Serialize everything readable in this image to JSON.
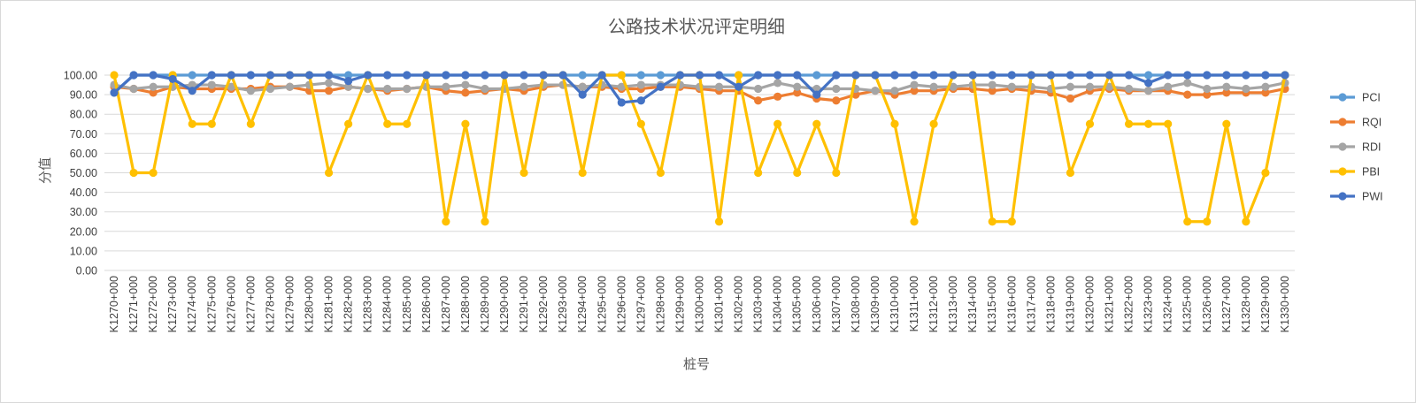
{
  "chart_data": {
    "type": "line",
    "title": "公路技术状况评定明细",
    "xlabel": "桩号",
    "ylabel": "分值",
    "ylim": [
      0,
      100
    ],
    "yticks": [
      "0.00",
      "10.00",
      "20.00",
      "30.00",
      "40.00",
      "50.00",
      "60.00",
      "70.00",
      "80.00",
      "90.00",
      "100.00"
    ],
    "grid": true,
    "legend_position": "right",
    "categories": [
      "K1270+000",
      "K1271+000",
      "K1272+000",
      "K1273+000",
      "K1274+000",
      "K1275+000",
      "K1276+000",
      "K1277+000",
      "K1278+000",
      "K1279+000",
      "K1280+000",
      "K1281+000",
      "K1282+000",
      "K1283+000",
      "K1284+000",
      "K1285+000",
      "K1286+000",
      "K1287+000",
      "K1288+000",
      "K1289+000",
      "K1290+000",
      "K1291+000",
      "K1292+000",
      "K1293+000",
      "K1294+000",
      "K1295+000",
      "K1296+000",
      "K1297+000",
      "K1298+000",
      "K1299+000",
      "K1300+000",
      "K1301+000",
      "K1302+000",
      "K1303+000",
      "K1304+000",
      "K1305+000",
      "K1306+000",
      "K1307+000",
      "K1308+000",
      "K1309+000",
      "K1310+000",
      "K1311+000",
      "K1312+000",
      "K1313+000",
      "K1314+000",
      "K1315+000",
      "K1316+000",
      "K1317+000",
      "K1318+000",
      "K1319+000",
      "K1320+000",
      "K1321+000",
      "K1322+000",
      "K1323+000",
      "K1324+000",
      "K1325+000",
      "K1326+000",
      "K1327+000",
      "K1328+000",
      "K1329+000",
      "K1330+000"
    ],
    "series": [
      {
        "name": "PCI",
        "color": "#5b9bd5",
        "values": [
          91,
          100,
          100,
          100,
          100,
          100,
          100,
          100,
          100,
          100,
          100,
          100,
          100,
          100,
          100,
          100,
          100,
          100,
          100,
          100,
          100,
          100,
          100,
          100,
          100,
          100,
          100,
          100,
          100,
          100,
          100,
          100,
          100,
          100,
          100,
          100,
          100,
          100,
          100,
          100,
          100,
          100,
          100,
          100,
          100,
          100,
          100,
          100,
          100,
          100,
          100,
          100,
          100,
          100,
          100,
          100,
          100,
          100,
          100,
          100,
          100
        ]
      },
      {
        "name": "RQI",
        "color": "#ed7d31",
        "values": [
          94,
          93,
          91,
          94,
          93,
          93,
          93,
          93,
          94,
          94,
          92,
          92,
          94,
          93,
          92,
          93,
          94,
          92,
          91,
          92,
          93,
          92,
          94,
          95,
          94,
          94,
          93,
          93,
          94,
          94,
          93,
          92,
          92,
          87,
          89,
          91,
          88,
          87,
          90,
          92,
          90,
          92,
          92,
          93,
          93,
          92,
          93,
          92,
          91,
          88,
          92,
          93,
          92,
          92,
          92,
          90,
          90,
          91,
          91,
          91,
          93
        ]
      },
      {
        "name": "RDI",
        "color": "#a5a5a5",
        "values": [
          95,
          93,
          94,
          94,
          95,
          95,
          94,
          92,
          93,
          94,
          95,
          96,
          94,
          93,
          93,
          93,
          94,
          94,
          95,
          93,
          93,
          94,
          95,
          95,
          94,
          95,
          94,
          95,
          95,
          95,
          94,
          94,
          94,
          93,
          96,
          94,
          93,
          93,
          93,
          92,
          92,
          95,
          94,
          94,
          95,
          95,
          94,
          94,
          93,
          94,
          94,
          94,
          93,
          92,
          94,
          96,
          93,
          94,
          93,
          94,
          96
        ]
      },
      {
        "name": "PBI",
        "color": "#ffc000",
        "values": [
          100,
          50,
          50,
          100,
          75,
          75,
          100,
          75,
          100,
          100,
          100,
          50,
          75,
          100,
          75,
          75,
          100,
          25,
          75,
          25,
          100,
          50,
          100,
          100,
          50,
          100,
          100,
          75,
          50,
          100,
          100,
          25,
          100,
          50,
          75,
          50,
          75,
          50,
          100,
          100,
          75,
          25,
          75,
          100,
          100,
          25,
          25,
          100,
          100,
          50,
          75,
          100,
          75,
          75,
          75,
          25,
          25,
          75,
          25,
          50,
          100
        ]
      },
      {
        "name": "PWI",
        "color": "#4472c4",
        "values": [
          91,
          100,
          100,
          98,
          92,
          100,
          100,
          100,
          100,
          100,
          100,
          100,
          97,
          100,
          100,
          100,
          100,
          100,
          100,
          100,
          100,
          100,
          100,
          100,
          90,
          100,
          86,
          87,
          94,
          100,
          100,
          100,
          94,
          100,
          100,
          100,
          90,
          100,
          100,
          100,
          100,
          100,
          100,
          100,
          100,
          100,
          100,
          100,
          100,
          100,
          100,
          100,
          100,
          96,
          100,
          100,
          100,
          100,
          100,
          100,
          100
        ]
      }
    ]
  }
}
